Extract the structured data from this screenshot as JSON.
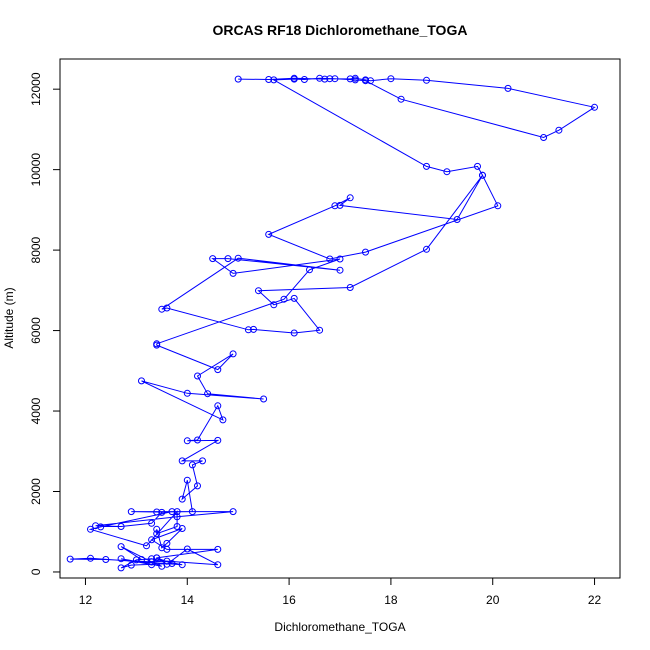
{
  "chart_data": {
    "type": "line",
    "title": "ORCAS RF18 Dichloromethane_TOGA",
    "xlabel": "Dichloromethane_TOGA",
    "ylabel": "Altitude (m)",
    "xlim": [
      11.5,
      22.5
    ],
    "ylim": [
      -150,
      12750
    ],
    "xticks": [
      12,
      14,
      16,
      18,
      20,
      22
    ],
    "yticks": [
      0,
      2000,
      4000,
      6000,
      8000,
      10000,
      12000
    ],
    "grid": false,
    "legend": "none",
    "marker": "open-circle",
    "color": "#0000ff",
    "series": [
      {
        "x": [
          15.0,
          15.6,
          16.1,
          16.7,
          16.8,
          17.2,
          17.3,
          17.5,
          17.6,
          18.0,
          18.7,
          20.3,
          22.0,
          21.3,
          21.0,
          18.2,
          17.5,
          17.3,
          16.9,
          16.6,
          16.3,
          16.1,
          15.7,
          18.7,
          19.1,
          19.7,
          19.8,
          19.3,
          17.0,
          17.2,
          16.9,
          15.6,
          16.8,
          17.5,
          20.1,
          19.8,
          18.7,
          17.2,
          15.4,
          15.7,
          16.1,
          16.6,
          16.1,
          15.3,
          15.2,
          13.6,
          13.5,
          15.0,
          17.0,
          14.8,
          14.5,
          14.9,
          17.0,
          16.4,
          15.9,
          13.4,
          13.4,
          14.6,
          14.9,
          14.2,
          14.4,
          15.5,
          14.0,
          13.1,
          14.7,
          14.6,
          14.2,
          14.0,
          14.6,
          13.9,
          14.3,
          14.1,
          14.2,
          13.9,
          14.0,
          14.1,
          13.4,
          12.9,
          14.9,
          13.8,
          12.2,
          12.7,
          13.3,
          13.5,
          13.7,
          12.3,
          12.1,
          13.2,
          13.8,
          13.8,
          13.4,
          13.4,
          13.5,
          13.6,
          13.9,
          13.3,
          13.6,
          14.6,
          13.4,
          13.7,
          12.9,
          12.7,
          13.0,
          13.3,
          13.9,
          12.1,
          11.7,
          12.4,
          13.3,
          13.5,
          12.7,
          13.3,
          13.4,
          13.6,
          14.0,
          14.6,
          13.6,
          13.3,
          12.7,
          13.1
        ],
        "y": [
          12250,
          12240,
          12270,
          12250,
          12260,
          12255,
          12270,
          12230,
          12210,
          12260,
          12220,
          12020,
          11550,
          10980,
          10800,
          11750,
          12210,
          12230,
          12260,
          12270,
          12240,
          12250,
          12230,
          10080,
          9950,
          10080,
          9860,
          8760,
          9110,
          9300,
          9100,
          8390,
          7780,
          7950,
          9100,
          9860,
          8020,
          7070,
          6990,
          6640,
          6800,
          6010,
          5940,
          6030,
          6020,
          6560,
          6530,
          7800,
          7500,
          7790,
          7790,
          7420,
          7780,
          7510,
          6780,
          5670,
          5640,
          5030,
          5420,
          4870,
          4430,
          4300,
          4440,
          4750,
          3780,
          4130,
          3280,
          3260,
          3270,
          2760,
          2760,
          2660,
          2140,
          1810,
          2280,
          1500,
          1490,
          1500,
          1500,
          1370,
          1150,
          1130,
          1210,
          1480,
          1500,
          1120,
          1060,
          650,
          1500,
          1130,
          950,
          1060,
          600,
          710,
          1080,
          800,
          560,
          560,
          350,
          210,
          170,
          100,
          300,
          330,
          180,
          340,
          320,
          310,
          250,
          140,
          330,
          180,
          350,
          190,
          570,
          180,
          270,
          250,
          630,
          310
        ]
      }
    ]
  }
}
